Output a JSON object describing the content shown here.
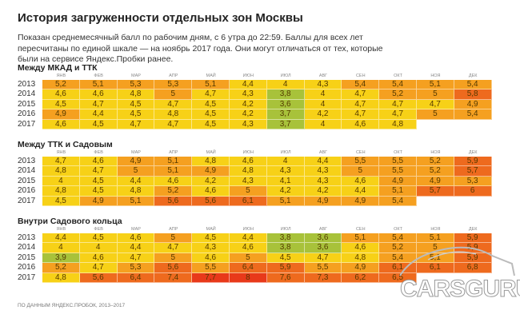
{
  "title": "История загруженности отдельных зон Москвы",
  "description": "Показан среднемесячный балл по рабочим дням, с 6 утра до 22:59. Баллы для всех лет пересчитаны по единой шкале — на ноябрь 2017 года. Они могут отличаться от тех, которые были на сервисе Яндекс.Пробки ранее.",
  "footer": "ПО ДАННЫМ ЯНДЕКС.ПРОБОК, 2013–2017",
  "watermark": "CARSGURU",
  "chart_data": {
    "type": "heatmap",
    "months": [
      "ЯНВ",
      "ФЕВ",
      "МАР",
      "АПР",
      "МАЙ",
      "ИЮН",
      "ИЮЛ",
      "АВГ",
      "СЕН",
      "ОКТ",
      "НОЯ",
      "ДЕК"
    ],
    "years": [
      "2013",
      "2014",
      "2015",
      "2016",
      "2017"
    ],
    "colors": {
      "low": "#a8c23a",
      "mid": "#f7d117",
      "high": "#f5a020",
      "vhigh": "#ee6a1e",
      "max": "#e8391a"
    },
    "tables": [
      {
        "title": "Между МКАД и ТТК",
        "values": [
          [
            "5,2",
            "5,1",
            "5,3",
            "5,3",
            "5,1",
            "4,4",
            "4",
            "4,3",
            "5,4",
            "5,4",
            "5,1",
            "5,4"
          ],
          [
            "4,6",
            "4,6",
            "4,8",
            "5",
            "4,7",
            "4,3",
            "3,8",
            "4",
            "4,7",
            "5,2",
            "5",
            "5,8"
          ],
          [
            "4,5",
            "4,7",
            "4,5",
            "4,7",
            "4,5",
            "4,2",
            "3,6",
            "4",
            "4,7",
            "4,7",
            "4,7",
            "4,9"
          ],
          [
            "4,9",
            "4,4",
            "4,5",
            "4,8",
            "4,5",
            "4,2",
            "3,7",
            "4,2",
            "4,7",
            "4,7",
            "5",
            "5,4"
          ],
          [
            "4,6",
            "4,5",
            "4,7",
            "4,7",
            "4,5",
            "4,3",
            "3,7",
            "4",
            "4,6",
            "4,8"
          ]
        ]
      },
      {
        "title": "Между ТТК и Садовым",
        "values": [
          [
            "4,7",
            "4,6",
            "4,9",
            "5,1",
            "4,8",
            "4,6",
            "4",
            "4,4",
            "5,5",
            "5,5",
            "5,2",
            "5,9"
          ],
          [
            "4,8",
            "4,7",
            "5",
            "5,1",
            "4,9",
            "4,8",
            "4,3",
            "4,3",
            "5",
            "5,5",
            "5,2",
            "5,7"
          ],
          [
            "4",
            "4,5",
            "4,4",
            "4,6",
            "4,2",
            "4,3",
            "4,1",
            "4,3",
            "4,6",
            "4,9",
            "4,9",
            "5,3"
          ],
          [
            "4,8",
            "4,5",
            "4,8",
            "5,2",
            "4,6",
            "5",
            "4,2",
            "4,2",
            "4,4",
            "5,1",
            "5,7",
            "6"
          ],
          [
            "4,5",
            "4,9",
            "5,1",
            "5,6",
            "5,6",
            "6,1",
            "5,1",
            "4,9",
            "4,9",
            "5,4"
          ]
        ]
      },
      {
        "title": "Внутри Садового кольца",
        "values": [
          [
            "4,4",
            "4,5",
            "4,6",
            "5",
            "4,5",
            "4,4",
            "3,8",
            "3,6",
            "5,1",
            "5,4",
            "5,1",
            "5,9"
          ],
          [
            "4",
            "4",
            "4,4",
            "4,7",
            "4,3",
            "4,6",
            "3,8",
            "3,6",
            "4,6",
            "5,2",
            "5",
            "5,9"
          ],
          [
            "3,9",
            "4,6",
            "4,7",
            "5",
            "4,6",
            "5",
            "4,5",
            "4,7",
            "4,8",
            "5,4",
            "5,1",
            "5,9"
          ],
          [
            "5,2",
            "4,7",
            "5,3",
            "5,6",
            "5,5",
            "6,4",
            "5,9",
            "5,5",
            "4,9",
            "6,1",
            "6,1",
            "6,8"
          ],
          [
            "4,8",
            "5,6",
            "6,4",
            "7,4",
            "7,7",
            "8",
            "7,6",
            "7,3",
            "6,2",
            "6,5"
          ]
        ]
      }
    ]
  }
}
